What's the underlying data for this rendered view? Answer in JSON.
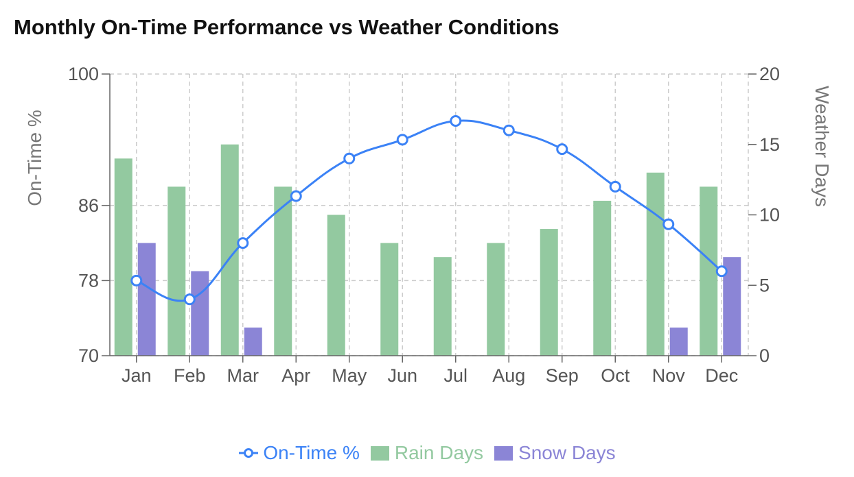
{
  "chart_data": {
    "type": "bar",
    "title": "Monthly On-Time Performance vs Weather Conditions",
    "categories": [
      "Jan",
      "Feb",
      "Mar",
      "Apr",
      "May",
      "Jun",
      "Jul",
      "Aug",
      "Sep",
      "Oct",
      "Nov",
      "Dec"
    ],
    "y_left": {
      "label": "On-Time %",
      "ylim": [
        70,
        100
      ],
      "ticks": [
        70,
        78,
        86,
        100
      ]
    },
    "y_right": {
      "label": "Weather Days",
      "ylim": [
        0,
        20
      ],
      "ticks": [
        0,
        5,
        10,
        15,
        20
      ]
    },
    "grid": true,
    "legend_position": "bottom",
    "series": [
      {
        "name": "On-Time %",
        "type": "line",
        "axis": "left",
        "color": "#3b82f6",
        "values": [
          78,
          76,
          82,
          87,
          91,
          93,
          95,
          94,
          92,
          88,
          84,
          79
        ]
      },
      {
        "name": "Rain Days",
        "type": "bar",
        "axis": "right",
        "color": "#93c9a0",
        "values": [
          14,
          12,
          15,
          12,
          10,
          8,
          7,
          8,
          9,
          11,
          13,
          12
        ]
      },
      {
        "name": "Snow Days",
        "type": "bar",
        "axis": "right",
        "color": "#8b85d6",
        "values": [
          8,
          6,
          2,
          0,
          0,
          0,
          0,
          0,
          0,
          0,
          2,
          7
        ]
      }
    ]
  }
}
